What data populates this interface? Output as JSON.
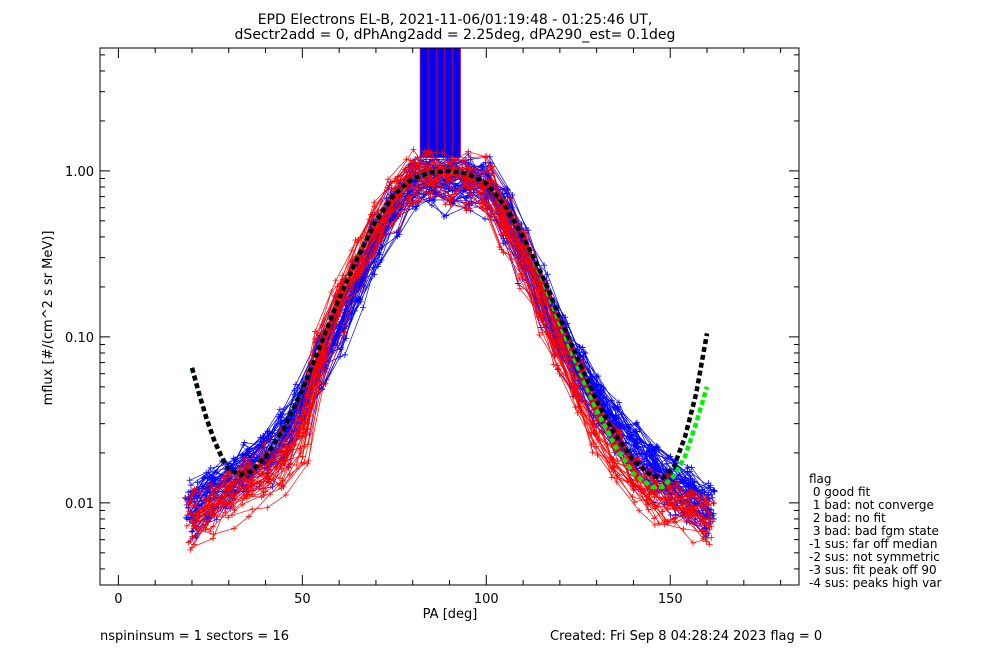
{
  "chart_data": {
    "type": "line",
    "title": "EPD Electrons EL-B, 2021-11-06/01:19:48 - 01:25:46 UT,",
    "subtitle": "dSectr2add = 0, dPhAng2add = 2.25deg, dPA290_est=   0.1deg",
    "xlabel": "PA [deg]",
    "ylabel": "mflux [#/(cm^2 s sr MeV)]",
    "xlim": [
      -5,
      185
    ],
    "ylim": [
      0.0032,
      5.5
    ],
    "y_scale": "log",
    "x_ticks": [
      0,
      50,
      100,
      150
    ],
    "x_tick_labels": [
      "0",
      "50",
      "100",
      "150"
    ],
    "y_ticks": [
      0.01,
      0.1,
      1.0
    ],
    "y_tick_labels": [
      "0.01",
      "0.10",
      "1.00"
    ],
    "grid": false,
    "colors": {
      "series_blue": "#0000ff",
      "series_red": "#ff0000",
      "fit_green": "#00ee00",
      "fit_black": "#000000"
    },
    "series": [
      {
        "color": "blue",
        "style": "thin lines with plus markers, many overlapping traces",
        "x": [
          20,
          25,
          30,
          35,
          40,
          45,
          50,
          55,
          60,
          65,
          70,
          75,
          80,
          85,
          90,
          95,
          100,
          105,
          110,
          115,
          120,
          125,
          130,
          135,
          140,
          145,
          150,
          155,
          160
        ],
        "y": [
          0.009,
          0.011,
          0.013,
          0.016,
          0.019,
          0.025,
          0.04,
          0.07,
          0.12,
          0.22,
          0.38,
          0.6,
          0.82,
          0.85,
          0.85,
          0.85,
          0.8,
          0.55,
          0.32,
          0.18,
          0.1,
          0.06,
          0.04,
          0.028,
          0.02,
          0.016,
          0.013,
          0.011,
          0.009
        ]
      },
      {
        "color": "red",
        "style": "thin lines with plus markers, many overlapping traces",
        "x": [
          20,
          25,
          30,
          35,
          40,
          45,
          50,
          55,
          60,
          65,
          70,
          75,
          80,
          85,
          90,
          95,
          100,
          105,
          110,
          115,
          120,
          125,
          130,
          135,
          140,
          145,
          150,
          155,
          160
        ],
        "y": [
          0.008,
          0.009,
          0.011,
          0.013,
          0.015,
          0.018,
          0.025,
          0.08,
          0.17,
          0.28,
          0.45,
          0.7,
          0.92,
          0.95,
          0.92,
          0.9,
          0.8,
          0.5,
          0.3,
          0.16,
          0.09,
          0.05,
          0.03,
          0.02,
          0.014,
          0.011,
          0.01,
          0.009,
          0.008
        ]
      },
      {
        "color": "green",
        "style": "thick dashed fit",
        "x": [
          20,
          22,
          24,
          26,
          28,
          30,
          33,
          36,
          40,
          45,
          50,
          55,
          60,
          65,
          70,
          75,
          80,
          85,
          90,
          95,
          100,
          105,
          110,
          115,
          120,
          125,
          130,
          135,
          140,
          145,
          148,
          151,
          154,
          157,
          160
        ],
        "y": [
          0.065,
          0.045,
          0.032,
          0.024,
          0.019,
          0.016,
          0.0148,
          0.0155,
          0.019,
          0.028,
          0.048,
          0.09,
          0.17,
          0.3,
          0.5,
          0.72,
          0.9,
          0.98,
          1.0,
          0.96,
          0.84,
          0.62,
          0.4,
          0.23,
          0.12,
          0.065,
          0.036,
          0.022,
          0.015,
          0.0125,
          0.0125,
          0.0145,
          0.019,
          0.03,
          0.05
        ]
      },
      {
        "color": "black",
        "style": "thick dashed fit",
        "x": [
          20,
          22,
          24,
          26,
          28,
          30,
          33,
          36,
          40,
          45,
          50,
          55,
          60,
          65,
          70,
          75,
          80,
          85,
          90,
          95,
          100,
          105,
          110,
          115,
          120,
          125,
          130,
          135,
          140,
          145,
          148,
          151,
          154,
          157,
          160
        ],
        "y": [
          0.065,
          0.045,
          0.032,
          0.024,
          0.019,
          0.016,
          0.0148,
          0.0155,
          0.019,
          0.028,
          0.048,
          0.09,
          0.17,
          0.3,
          0.5,
          0.72,
          0.9,
          0.98,
          1.0,
          0.96,
          0.84,
          0.62,
          0.4,
          0.24,
          0.13,
          0.072,
          0.041,
          0.026,
          0.018,
          0.0145,
          0.0142,
          0.0165,
          0.025,
          0.045,
          0.105
        ]
      }
    ],
    "annotation_bar": {
      "color": "blue",
      "x_range": [
        82,
        93
      ],
      "y_range": [
        1.2,
        5.5
      ]
    },
    "legend": {
      "placement": "right",
      "entries": [
        "flag",
        " 0 good fit",
        " 1 bad: not converge",
        " 2 bad: no fit",
        " 3 bad: bad fgm state",
        "-1 sus: far off median",
        "-2 sus: not symmetric",
        "-3 sus: fit peak off 90",
        "-4 sus: peaks high var"
      ]
    },
    "footer": {
      "left": "nspininsum =  1  sectors = 16",
      "right": "Created: Fri Sep  8 04:28:24 2023   flag = 0"
    }
  }
}
